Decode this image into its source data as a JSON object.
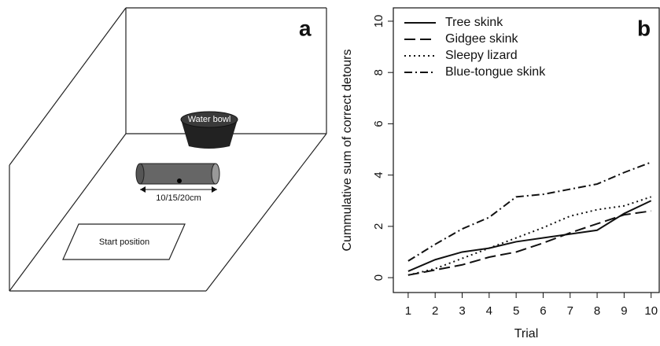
{
  "diagram": {
    "panel_label": "a",
    "bowl_label": "Water bowl",
    "tube_label": "10/15/20cm",
    "start_label": "Start position"
  },
  "chart_data": {
    "type": "line",
    "panel_label": "b",
    "x_label": "Trial",
    "y_label": "Cummulative sum of correct detours",
    "x": [
      1,
      2,
      3,
      4,
      5,
      6,
      7,
      8,
      9,
      10
    ],
    "series": [
      {
        "name": "Tree skink",
        "color": "#111111",
        "dash": "solid",
        "values": [
          0.25,
          0.7,
          1.0,
          1.15,
          1.4,
          1.55,
          1.7,
          1.85,
          2.5,
          3.0
        ]
      },
      {
        "name": "Gidgee skink",
        "color": "#111111",
        "dash": "longdash",
        "values": [
          0.1,
          0.3,
          0.5,
          0.8,
          1.0,
          1.35,
          1.75,
          2.1,
          2.45,
          2.6
        ]
      },
      {
        "name": "Sleepy lizard",
        "color": "#111111",
        "dash": "dotted",
        "values": [
          0.1,
          0.35,
          0.75,
          1.15,
          1.55,
          1.95,
          2.4,
          2.65,
          2.8,
          3.15
        ]
      },
      {
        "name": "Blue-tongue skink",
        "color": "#111111",
        "dash": "dotdash",
        "values": [
          0.65,
          1.3,
          1.9,
          2.35,
          3.15,
          3.25,
          3.45,
          3.65,
          4.1,
          4.5
        ]
      }
    ],
    "xlim": [
      0.45,
      10.3
    ],
    "ylim": [
      -0.58,
      10.52
    ],
    "xticks": [
      1,
      2,
      3,
      4,
      5,
      6,
      7,
      8,
      9,
      10
    ],
    "yticks": [
      0,
      2,
      4,
      6,
      8,
      10
    ],
    "legend": "top-left",
    "grid": false
  }
}
